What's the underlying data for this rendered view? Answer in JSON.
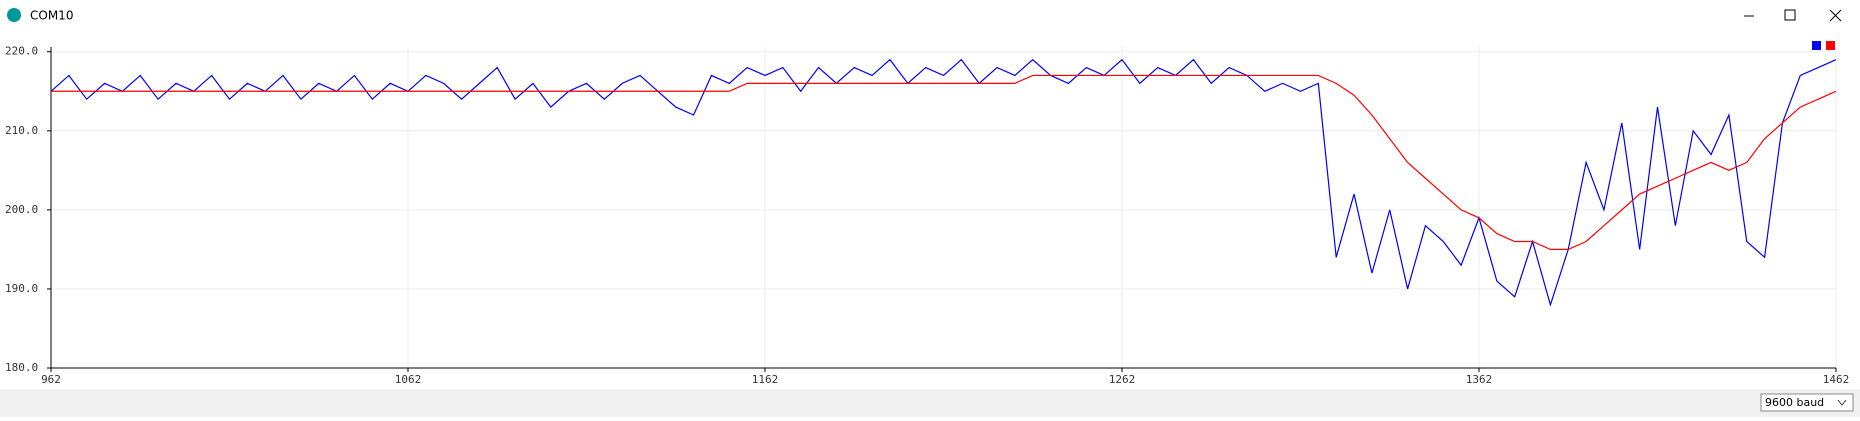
{
  "window": {
    "title": "COM10",
    "baud": "9600 baud"
  },
  "chart_data": {
    "type": "line",
    "x": [
      962,
      967,
      972,
      977,
      982,
      987,
      992,
      997,
      1002,
      1007,
      1012,
      1017,
      1022,
      1027,
      1032,
      1037,
      1042,
      1047,
      1052,
      1057,
      1062,
      1067,
      1072,
      1077,
      1082,
      1087,
      1092,
      1097,
      1102,
      1107,
      1112,
      1117,
      1122,
      1127,
      1132,
      1137,
      1142,
      1147,
      1152,
      1157,
      1162,
      1167,
      1172,
      1177,
      1182,
      1187,
      1192,
      1197,
      1202,
      1207,
      1212,
      1217,
      1222,
      1227,
      1232,
      1237,
      1242,
      1247,
      1252,
      1257,
      1262,
      1267,
      1272,
      1277,
      1282,
      1287,
      1292,
      1297,
      1302,
      1307,
      1312,
      1317,
      1322,
      1327,
      1332,
      1337,
      1342,
      1347,
      1352,
      1357,
      1362,
      1367,
      1372,
      1377,
      1382,
      1387,
      1392,
      1397,
      1402,
      1407,
      1412,
      1417,
      1422,
      1427,
      1432,
      1437,
      1442,
      1447,
      1452,
      1457,
      1462
    ],
    "series": [
      {
        "color": "#0000ff",
        "values": [
          215,
          217,
          214,
          216,
          215,
          217,
          214,
          216,
          215,
          217,
          214,
          216,
          215,
          217,
          214,
          216,
          215,
          217,
          214,
          216,
          215,
          217,
          216,
          214,
          216,
          218,
          214,
          216,
          213,
          215,
          216,
          214,
          216,
          217,
          215,
          213,
          212,
          217,
          216,
          218,
          217,
          218,
          215,
          218,
          216,
          218,
          217,
          219,
          216,
          218,
          217,
          219,
          216,
          218,
          217,
          219,
          217,
          216,
          218,
          217,
          219,
          216,
          218,
          217,
          219,
          216,
          218,
          217,
          215,
          216,
          215,
          216,
          194,
          202,
          192,
          200,
          190,
          198,
          196,
          193,
          199,
          191,
          189,
          196,
          188,
          195,
          206,
          200,
          211,
          195,
          213,
          198,
          210,
          207,
          212,
          196,
          194,
          211,
          217,
          218,
          219
        ]
      },
      {
        "color": "#ff0000",
        "values": [
          215,
          215,
          215,
          215,
          215,
          215,
          215,
          215,
          215,
          215,
          215,
          215,
          215,
          215,
          215,
          215,
          215,
          215,
          215,
          215,
          215,
          215,
          215,
          215,
          215,
          215,
          215,
          215,
          215,
          215,
          215,
          215,
          215,
          215,
          215,
          215,
          215,
          215,
          215,
          216,
          216,
          216,
          216,
          216,
          216,
          216,
          216,
          216,
          216,
          216,
          216,
          216,
          216,
          216,
          216,
          217,
          217,
          217,
          217,
          217,
          217,
          217,
          217,
          217,
          217,
          217,
          217,
          217,
          217,
          217,
          217,
          217,
          216,
          214.5,
          212,
          209,
          206,
          204,
          202,
          200,
          199,
          197,
          196,
          196,
          195,
          195,
          196,
          198,
          200,
          202,
          203,
          204,
          205,
          206,
          205,
          206,
          209,
          211,
          213,
          214,
          215
        ]
      }
    ],
    "xlim": [
      962,
      1462
    ],
    "xticks": [
      962,
      1062,
      1162,
      1262,
      1362,
      1462
    ],
    "ylim": [
      180,
      220.6
    ],
    "yticks": [
      {
        "value": 180,
        "label": "180.0"
      },
      {
        "value": 190,
        "label": "190.0"
      },
      {
        "value": 200,
        "label": "200.0"
      },
      {
        "value": 210,
        "label": "210.0"
      },
      {
        "value": 220,
        "label": "220.0"
      }
    ],
    "grid": true,
    "legend": "top-right"
  }
}
